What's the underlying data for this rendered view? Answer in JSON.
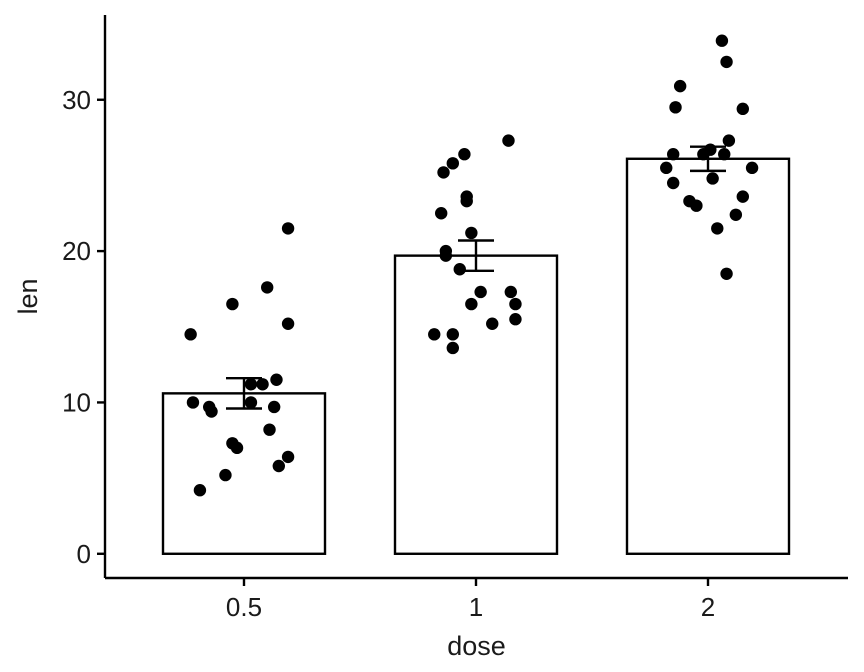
{
  "chart_data": {
    "type": "bar",
    "title": "",
    "xlabel": "dose",
    "ylabel": "len",
    "categories": [
      "0.5",
      "1",
      "2"
    ],
    "values": [
      10.6,
      19.7,
      26.1
    ],
    "error": [
      {
        "low": 9.6,
        "high": 11.6
      },
      {
        "low": 18.7,
        "high": 20.7
      },
      {
        "low": 25.3,
        "high": 26.9
      }
    ],
    "ylim": [
      -1.6,
      35.6
    ],
    "yticks": [
      0,
      10,
      20,
      30
    ],
    "grid": false,
    "points": [
      {
        "cat": 0,
        "jitter": -0.19,
        "y": 4.2
      },
      {
        "cat": 0,
        "jitter": -0.08,
        "y": 5.2
      },
      {
        "cat": 0,
        "jitter": 0.15,
        "y": 5.8
      },
      {
        "cat": 0,
        "jitter": 0.19,
        "y": 6.4
      },
      {
        "cat": 0,
        "jitter": -0.03,
        "y": 7.0
      },
      {
        "cat": 0,
        "jitter": -0.05,
        "y": 7.3
      },
      {
        "cat": 0,
        "jitter": 0.11,
        "y": 8.2
      },
      {
        "cat": 0,
        "jitter": -0.14,
        "y": 9.4
      },
      {
        "cat": 0,
        "jitter": -0.15,
        "y": 9.7
      },
      {
        "cat": 0,
        "jitter": 0.13,
        "y": 9.7
      },
      {
        "cat": 0,
        "jitter": 0.03,
        "y": 10.0
      },
      {
        "cat": 0,
        "jitter": -0.22,
        "y": 10.0
      },
      {
        "cat": 0,
        "jitter": 0.08,
        "y": 11.2
      },
      {
        "cat": 0,
        "jitter": 0.03,
        "y": 11.2
      },
      {
        "cat": 0,
        "jitter": 0.14,
        "y": 11.5
      },
      {
        "cat": 0,
        "jitter": -0.23,
        "y": 14.5
      },
      {
        "cat": 0,
        "jitter": 0.19,
        "y": 15.2
      },
      {
        "cat": 0,
        "jitter": -0.05,
        "y": 16.5
      },
      {
        "cat": 0,
        "jitter": 0.1,
        "y": 17.6
      },
      {
        "cat": 0,
        "jitter": 0.19,
        "y": 21.5
      },
      {
        "cat": 1,
        "jitter": -0.1,
        "y": 13.6
      },
      {
        "cat": 1,
        "jitter": -0.18,
        "y": 14.5
      },
      {
        "cat": 1,
        "jitter": -0.1,
        "y": 14.5
      },
      {
        "cat": 1,
        "jitter": 0.07,
        "y": 15.2
      },
      {
        "cat": 1,
        "jitter": 0.17,
        "y": 15.5
      },
      {
        "cat": 1,
        "jitter": -0.02,
        "y": 16.5
      },
      {
        "cat": 1,
        "jitter": 0.17,
        "y": 16.5
      },
      {
        "cat": 1,
        "jitter": 0.02,
        "y": 17.3
      },
      {
        "cat": 1,
        "jitter": 0.15,
        "y": 17.3
      },
      {
        "cat": 1,
        "jitter": -0.07,
        "y": 18.8
      },
      {
        "cat": 1,
        "jitter": -0.13,
        "y": 19.7
      },
      {
        "cat": 1,
        "jitter": -0.13,
        "y": 20.0
      },
      {
        "cat": 1,
        "jitter": -0.02,
        "y": 21.2
      },
      {
        "cat": 1,
        "jitter": -0.15,
        "y": 22.5
      },
      {
        "cat": 1,
        "jitter": -0.04,
        "y": 23.3
      },
      {
        "cat": 1,
        "jitter": -0.04,
        "y": 23.6
      },
      {
        "cat": 1,
        "jitter": -0.14,
        "y": 25.2
      },
      {
        "cat": 1,
        "jitter": -0.1,
        "y": 25.8
      },
      {
        "cat": 1,
        "jitter": -0.05,
        "y": 26.4
      },
      {
        "cat": 1,
        "jitter": 0.14,
        "y": 27.3
      },
      {
        "cat": 2,
        "jitter": 0.08,
        "y": 18.5
      },
      {
        "cat": 2,
        "jitter": 0.04,
        "y": 21.5
      },
      {
        "cat": 2,
        "jitter": 0.12,
        "y": 22.4
      },
      {
        "cat": 2,
        "jitter": -0.05,
        "y": 23.0
      },
      {
        "cat": 2,
        "jitter": -0.08,
        "y": 23.3
      },
      {
        "cat": 2,
        "jitter": -0.15,
        "y": 24.5
      },
      {
        "cat": 2,
        "jitter": 0.15,
        "y": 23.6
      },
      {
        "cat": 2,
        "jitter": -0.18,
        "y": 25.5
      },
      {
        "cat": 2,
        "jitter": 0.19,
        "y": 25.5
      },
      {
        "cat": 2,
        "jitter": 0.02,
        "y": 24.8
      },
      {
        "cat": 2,
        "jitter": 0.07,
        "y": 26.4
      },
      {
        "cat": 2,
        "jitter": -0.15,
        "y": 26.4
      },
      {
        "cat": 2,
        "jitter": -0.02,
        "y": 26.4
      },
      {
        "cat": 2,
        "jitter": 0.01,
        "y": 26.7
      },
      {
        "cat": 2,
        "jitter": 0.09,
        "y": 27.3
      },
      {
        "cat": 2,
        "jitter": -0.14,
        "y": 29.5
      },
      {
        "cat": 2,
        "jitter": 0.15,
        "y": 29.4
      },
      {
        "cat": 2,
        "jitter": -0.12,
        "y": 30.9
      },
      {
        "cat": 2,
        "jitter": 0.08,
        "y": 32.5
      },
      {
        "cat": 2,
        "jitter": 0.06,
        "y": 33.9
      }
    ]
  }
}
